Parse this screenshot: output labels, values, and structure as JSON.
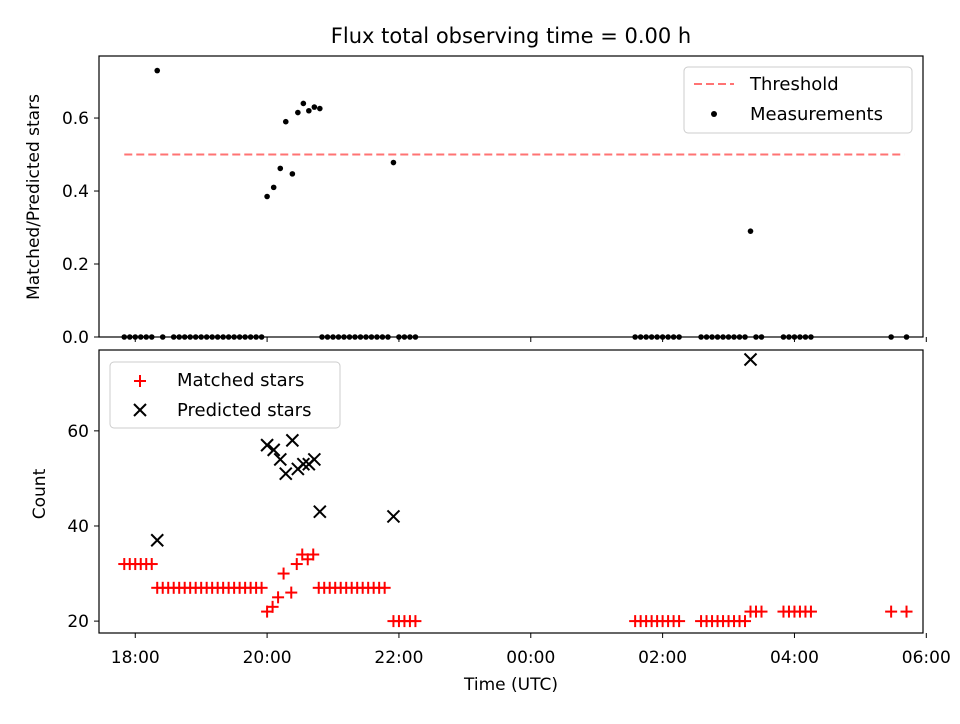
{
  "title": "Flux total observing time = 0.00 h",
  "colors": {
    "threshold": "#ff7373",
    "measurement": "#000000",
    "matched": "#ff0000",
    "predicted": "#000000"
  },
  "chart_data": [
    {
      "type": "scatter",
      "panel": "top",
      "title": "Flux total observing time = 0.00 h",
      "xlabel": "",
      "ylabel": "Matched/Predicted stars",
      "xlim": [
        "17:27",
        "05:57"
      ],
      "ylim": [
        0,
        0.77
      ],
      "yticks": [
        "0.0",
        "0.2",
        "0.4",
        "0.6"
      ],
      "xticks": [
        "18:00",
        "20:00",
        "22:00",
        "00:00",
        "02:00",
        "04:00",
        "06:00"
      ],
      "legend": {
        "position": "top-right",
        "entries": [
          "Threshold",
          "Measurements"
        ]
      },
      "threshold": {
        "name": "Threshold",
        "y": 0.5,
        "x_start": "17:50",
        "x_end": "05:40",
        "style": "dashed"
      },
      "series": [
        {
          "name": "Measurements",
          "points": [
            {
              "x": "17:50",
              "y": 0
            },
            {
              "x": "17:55",
              "y": 0
            },
            {
              "x": "18:00",
              "y": 0
            },
            {
              "x": "18:05",
              "y": 0
            },
            {
              "x": "18:10",
              "y": 0
            },
            {
              "x": "18:15",
              "y": 0
            },
            {
              "x": "18:20",
              "y": 0.73
            },
            {
              "x": "18:25",
              "y": 0
            },
            {
              "x": "18:35",
              "y": 0
            },
            {
              "x": "18:40",
              "y": 0
            },
            {
              "x": "18:45",
              "y": 0
            },
            {
              "x": "18:50",
              "y": 0
            },
            {
              "x": "18:55",
              "y": 0
            },
            {
              "x": "19:00",
              "y": 0
            },
            {
              "x": "19:05",
              "y": 0
            },
            {
              "x": "19:10",
              "y": 0
            },
            {
              "x": "19:15",
              "y": 0
            },
            {
              "x": "19:20",
              "y": 0
            },
            {
              "x": "19:25",
              "y": 0
            },
            {
              "x": "19:30",
              "y": 0
            },
            {
              "x": "19:35",
              "y": 0
            },
            {
              "x": "19:40",
              "y": 0
            },
            {
              "x": "19:45",
              "y": 0
            },
            {
              "x": "19:50",
              "y": 0
            },
            {
              "x": "19:55",
              "y": 0
            },
            {
              "x": "20:00",
              "y": 0.385
            },
            {
              "x": "20:06",
              "y": 0.41
            },
            {
              "x": "20:12",
              "y": 0.462
            },
            {
              "x": "20:17",
              "y": 0.59
            },
            {
              "x": "20:23",
              "y": 0.447
            },
            {
              "x": "20:28",
              "y": 0.615
            },
            {
              "x": "20:33",
              "y": 0.64
            },
            {
              "x": "20:38",
              "y": 0.62
            },
            {
              "x": "20:43",
              "y": 0.63
            },
            {
              "x": "20:48",
              "y": 0.626
            },
            {
              "x": "20:50",
              "y": 0
            },
            {
              "x": "20:55",
              "y": 0
            },
            {
              "x": "21:00",
              "y": 0
            },
            {
              "x": "21:05",
              "y": 0
            },
            {
              "x": "21:10",
              "y": 0
            },
            {
              "x": "21:15",
              "y": 0
            },
            {
              "x": "21:20",
              "y": 0
            },
            {
              "x": "21:25",
              "y": 0
            },
            {
              "x": "21:30",
              "y": 0
            },
            {
              "x": "21:35",
              "y": 0
            },
            {
              "x": "21:40",
              "y": 0
            },
            {
              "x": "21:45",
              "y": 0
            },
            {
              "x": "21:50",
              "y": 0
            },
            {
              "x": "21:55",
              "y": 0.478
            },
            {
              "x": "22:00",
              "y": 0
            },
            {
              "x": "22:05",
              "y": 0
            },
            {
              "x": "22:10",
              "y": 0
            },
            {
              "x": "22:15",
              "y": 0
            },
            {
              "x": "01:35",
              "y": 0
            },
            {
              "x": "01:40",
              "y": 0
            },
            {
              "x": "01:45",
              "y": 0
            },
            {
              "x": "01:50",
              "y": 0
            },
            {
              "x": "01:55",
              "y": 0
            },
            {
              "x": "02:00",
              "y": 0
            },
            {
              "x": "02:05",
              "y": 0
            },
            {
              "x": "02:10",
              "y": 0
            },
            {
              "x": "02:15",
              "y": 0
            },
            {
              "x": "02:35",
              "y": 0
            },
            {
              "x": "02:40",
              "y": 0
            },
            {
              "x": "02:45",
              "y": 0
            },
            {
              "x": "02:50",
              "y": 0
            },
            {
              "x": "02:55",
              "y": 0
            },
            {
              "x": "03:00",
              "y": 0
            },
            {
              "x": "03:05",
              "y": 0
            },
            {
              "x": "03:10",
              "y": 0
            },
            {
              "x": "03:15",
              "y": 0
            },
            {
              "x": "03:20",
              "y": 0.29
            },
            {
              "x": "03:25",
              "y": 0
            },
            {
              "x": "03:30",
              "y": 0
            },
            {
              "x": "03:50",
              "y": 0
            },
            {
              "x": "03:55",
              "y": 0
            },
            {
              "x": "04:00",
              "y": 0
            },
            {
              "x": "04:05",
              "y": 0
            },
            {
              "x": "04:10",
              "y": 0
            },
            {
              "x": "04:15",
              "y": 0
            },
            {
              "x": "05:28",
              "y": 0
            },
            {
              "x": "05:42",
              "y": 0
            }
          ]
        }
      ]
    },
    {
      "type": "scatter",
      "panel": "bottom",
      "xlabel": "Time (UTC)",
      "ylabel": "Count",
      "xlim": [
        "17:27",
        "05:57"
      ],
      "ylim": [
        17.5,
        77
      ],
      "yticks": [
        "20",
        "40",
        "60"
      ],
      "xticks": [
        "18:00",
        "20:00",
        "22:00",
        "00:00",
        "02:00",
        "04:00",
        "06:00"
      ],
      "legend": {
        "position": "top-left",
        "entries": [
          "Matched stars",
          "Predicted stars"
        ]
      },
      "series": [
        {
          "name": "Matched stars",
          "marker": "+",
          "points": [
            {
              "x": "17:50",
              "y": 32
            },
            {
              "x": "17:55",
              "y": 32
            },
            {
              "x": "18:00",
              "y": 32
            },
            {
              "x": "18:05",
              "y": 32
            },
            {
              "x": "18:10",
              "y": 32
            },
            {
              "x": "18:15",
              "y": 32
            },
            {
              "x": "18:20",
              "y": 27
            },
            {
              "x": "18:25",
              "y": 27
            },
            {
              "x": "18:30",
              "y": 27
            },
            {
              "x": "18:35",
              "y": 27
            },
            {
              "x": "18:40",
              "y": 27
            },
            {
              "x": "18:45",
              "y": 27
            },
            {
              "x": "18:50",
              "y": 27
            },
            {
              "x": "18:55",
              "y": 27
            },
            {
              "x": "19:00",
              "y": 27
            },
            {
              "x": "19:05",
              "y": 27
            },
            {
              "x": "19:10",
              "y": 27
            },
            {
              "x": "19:15",
              "y": 27
            },
            {
              "x": "19:20",
              "y": 27
            },
            {
              "x": "19:25",
              "y": 27
            },
            {
              "x": "19:30",
              "y": 27
            },
            {
              "x": "19:35",
              "y": 27
            },
            {
              "x": "19:40",
              "y": 27
            },
            {
              "x": "19:45",
              "y": 27
            },
            {
              "x": "19:50",
              "y": 27
            },
            {
              "x": "19:55",
              "y": 27
            },
            {
              "x": "20:00",
              "y": 22
            },
            {
              "x": "20:05",
              "y": 23
            },
            {
              "x": "20:10",
              "y": 25
            },
            {
              "x": "20:15",
              "y": 30
            },
            {
              "x": "20:22",
              "y": 26
            },
            {
              "x": "20:27",
              "y": 32
            },
            {
              "x": "20:32",
              "y": 34
            },
            {
              "x": "20:37",
              "y": 33
            },
            {
              "x": "20:42",
              "y": 34
            },
            {
              "x": "20:47",
              "y": 27
            },
            {
              "x": "20:52",
              "y": 27
            },
            {
              "x": "20:57",
              "y": 27
            },
            {
              "x": "21:02",
              "y": 27
            },
            {
              "x": "21:07",
              "y": 27
            },
            {
              "x": "21:12",
              "y": 27
            },
            {
              "x": "21:17",
              "y": 27
            },
            {
              "x": "21:22",
              "y": 27
            },
            {
              "x": "21:27",
              "y": 27
            },
            {
              "x": "21:32",
              "y": 27
            },
            {
              "x": "21:37",
              "y": 27
            },
            {
              "x": "21:42",
              "y": 27
            },
            {
              "x": "21:47",
              "y": 27
            },
            {
              "x": "21:55",
              "y": 20
            },
            {
              "x": "22:00",
              "y": 20
            },
            {
              "x": "22:05",
              "y": 20
            },
            {
              "x": "22:10",
              "y": 20
            },
            {
              "x": "22:15",
              "y": 20
            },
            {
              "x": "01:35",
              "y": 20
            },
            {
              "x": "01:40",
              "y": 20
            },
            {
              "x": "01:45",
              "y": 20
            },
            {
              "x": "01:50",
              "y": 20
            },
            {
              "x": "01:55",
              "y": 20
            },
            {
              "x": "02:00",
              "y": 20
            },
            {
              "x": "02:05",
              "y": 20
            },
            {
              "x": "02:10",
              "y": 20
            },
            {
              "x": "02:15",
              "y": 20
            },
            {
              "x": "02:35",
              "y": 20
            },
            {
              "x": "02:40",
              "y": 20
            },
            {
              "x": "02:45",
              "y": 20
            },
            {
              "x": "02:50",
              "y": 20
            },
            {
              "x": "02:55",
              "y": 20
            },
            {
              "x": "03:00",
              "y": 20
            },
            {
              "x": "03:05",
              "y": 20
            },
            {
              "x": "03:10",
              "y": 20
            },
            {
              "x": "03:15",
              "y": 20
            },
            {
              "x": "03:20",
              "y": 22
            },
            {
              "x": "03:25",
              "y": 22
            },
            {
              "x": "03:30",
              "y": 22
            },
            {
              "x": "03:50",
              "y": 22
            },
            {
              "x": "03:55",
              "y": 22
            },
            {
              "x": "04:00",
              "y": 22
            },
            {
              "x": "04:05",
              "y": 22
            },
            {
              "x": "04:10",
              "y": 22
            },
            {
              "x": "04:15",
              "y": 22
            },
            {
              "x": "05:28",
              "y": 22
            },
            {
              "x": "05:42",
              "y": 22
            }
          ]
        },
        {
          "name": "Predicted stars",
          "marker": "x",
          "points": [
            {
              "x": "18:20",
              "y": 37
            },
            {
              "x": "20:00",
              "y": 57
            },
            {
              "x": "20:06",
              "y": 56
            },
            {
              "x": "20:12",
              "y": 54
            },
            {
              "x": "20:17",
              "y": 51
            },
            {
              "x": "20:23",
              "y": 58
            },
            {
              "x": "20:28",
              "y": 52
            },
            {
              "x": "20:33",
              "y": 53
            },
            {
              "x": "20:38",
              "y": 53
            },
            {
              "x": "20:43",
              "y": 54
            },
            {
              "x": "20:48",
              "y": 43
            },
            {
              "x": "21:55",
              "y": 42
            },
            {
              "x": "03:20",
              "y": 75
            }
          ]
        }
      ]
    }
  ]
}
